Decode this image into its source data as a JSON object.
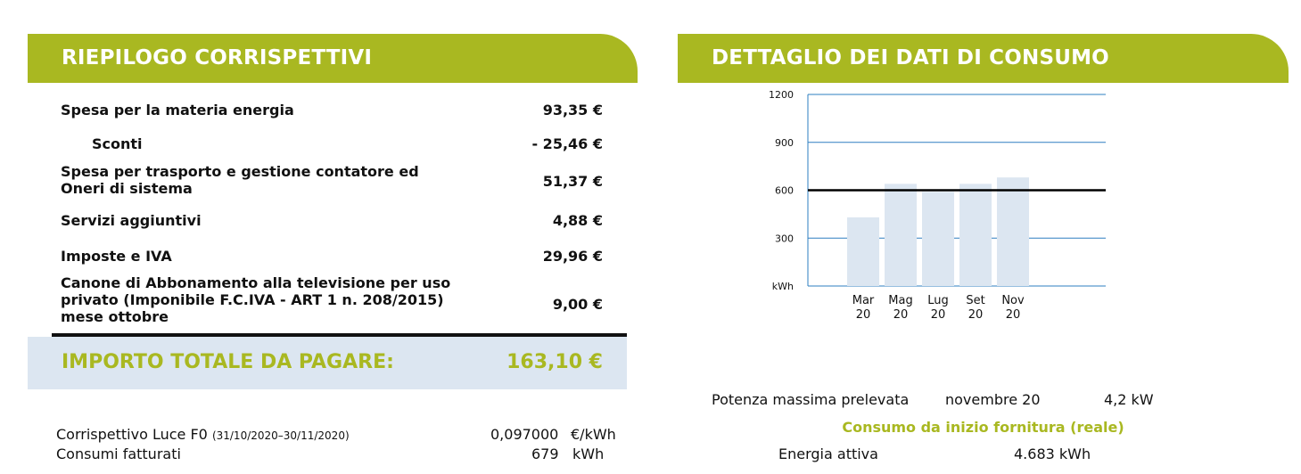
{
  "left": {
    "title": "RIEPILOGO CORRISPETTIVI",
    "rows": [
      {
        "label": "Spesa per la materia energia",
        "value": "93,35 €"
      },
      {
        "label": "Sconti",
        "value": "- 25,46 €"
      },
      {
        "label": "Spesa per trasporto e gestione contatore ed Oneri di sistema",
        "value": "51,37 €"
      },
      {
        "label": "Servizi aggiuntivi",
        "value": "4,88 €"
      },
      {
        "label": "Imposte e IVA",
        "value": "29,96 €"
      },
      {
        "label": "Canone di Abbonamento alla televisione per uso privato (Imponibile F.C.IVA - ART 1 n. 208/2015) mese ottobre",
        "value": "9,00 €"
      }
    ],
    "total_label": "IMPORTO TOTALE DA PAGARE:",
    "total_value": "163,10 €",
    "corrispettivo_label": "Corrispettivo Luce F0",
    "corrispettivo_period": "(31/10/2020–30/11/2020)",
    "corrispettivo_value": "0,097000",
    "corrispettivo_unit": "€/kWh",
    "consumi_label": "Consumi fatturati",
    "consumi_value": "679",
    "consumi_unit": "kWh"
  },
  "right": {
    "title": "DETTAGLIO DEI DATI DI CONSUMO",
    "potenza_label": "Potenza massima prelevata",
    "potenza_period": "novembre 20",
    "potenza_value": "4,2 kW",
    "consumo_title": "Consumo da inizio fornitura (reale)",
    "energia_label": "Energia attiva",
    "energia_value": "4.683 kWh"
  },
  "chart_data": {
    "type": "bar",
    "categories": [
      [
        "Mar",
        "20"
      ],
      [
        "Mag",
        "20"
      ],
      [
        "Lug",
        "20"
      ],
      [
        "Set",
        "20"
      ],
      [
        "Nov",
        "20"
      ]
    ],
    "values": [
      430,
      640,
      590,
      640,
      680
    ],
    "reference_line": 600,
    "yticks": [
      300,
      600,
      900,
      1200
    ],
    "yunit": "kWh",
    "ylim": [
      0,
      1200
    ],
    "grid": true,
    "bar_color": "#dce6f1",
    "grid_color": "#2e7fc1"
  }
}
